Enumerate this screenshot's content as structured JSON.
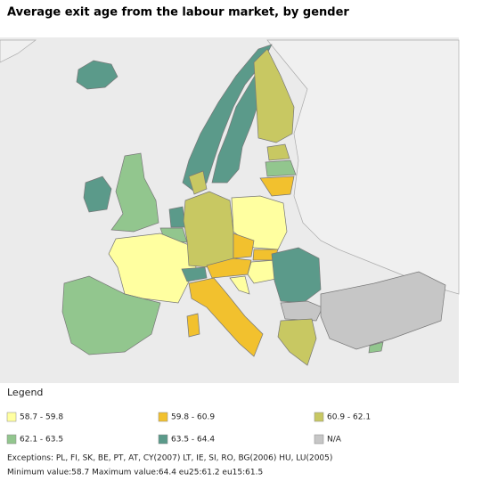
{
  "title": "Average exit age from the labour market, by gender",
  "legend": {
    "title": "Legend",
    "items": [
      {
        "label": "58.7 - 59.8",
        "color": "#ffffa0"
      },
      {
        "label": "59.8 - 60.9",
        "color": "#f2c12e"
      },
      {
        "label": "60.9 - 62.1",
        "color": "#c8c862"
      },
      {
        "label": "62.1 - 63.5",
        "color": "#92c68e"
      },
      {
        "label": "63.5 - 64.4",
        "color": "#5b9a8a"
      },
      {
        "label": "N/A",
        "color": "#c6c6c6"
      }
    ]
  },
  "notes": [
    "Exceptions: PL, FI, SK, BE, PT, AT, CY(2007) LT, IE, SI, RO, BG(2006) HU, LU(2005)",
    "Minimum value:58.7 Maximum value:64.4 eu25:61.2 eu15:61.5"
  ]
}
